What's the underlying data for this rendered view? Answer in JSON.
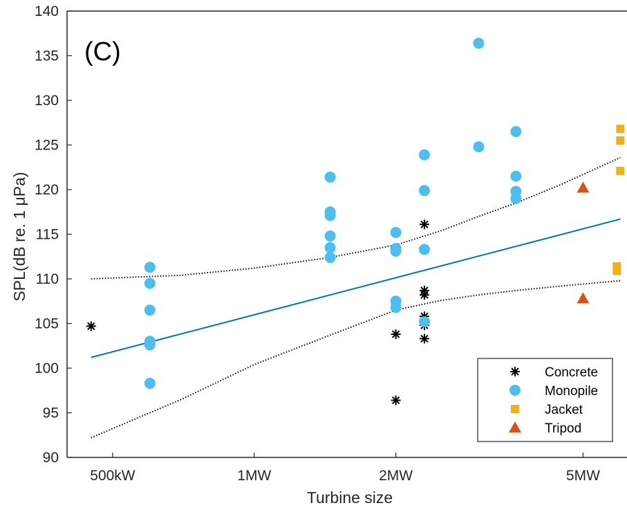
{
  "chart_data": {
    "type": "scatter",
    "panel_label": "(C)",
    "xlabel": "Turbine size",
    "ylabel": "SPL(dB re. 1 μPa)",
    "xscale": "log",
    "xlim_kw": [
      400,
      6200
    ],
    "ylim": [
      90,
      140
    ],
    "xticks": [
      {
        "value_kw": 500,
        "label": "500kW"
      },
      {
        "value_kw": 1000,
        "label": "1MW"
      },
      {
        "value_kw": 2000,
        "label": "2MW"
      },
      {
        "value_kw": 5000,
        "label": "5MW"
      }
    ],
    "yticks": [
      90,
      95,
      100,
      105,
      110,
      115,
      120,
      125,
      130,
      135,
      140
    ],
    "legend": {
      "placement": "bottom-right"
    },
    "colors": {
      "concrete": "#000000",
      "monopile": "#4dbeee",
      "jacket": "#edb120",
      "tripod": "#d95319",
      "fit": "#0072bd",
      "ci": "#000000"
    },
    "series": [
      {
        "name": "Concrete",
        "marker": "asterisk",
        "color": "#000000",
        "points": [
          [
            450,
            104.7
          ],
          [
            2000,
            103.8
          ],
          [
            2000,
            96.4
          ],
          [
            2300,
            116.1
          ],
          [
            2300,
            108.7
          ],
          [
            2300,
            108.2
          ],
          [
            2300,
            105.8
          ],
          [
            2300,
            104.8
          ],
          [
            2300,
            103.3
          ]
        ]
      },
      {
        "name": "Monopile",
        "marker": "circle",
        "color": "#4dbeee",
        "points": [
          [
            600,
            111.3
          ],
          [
            600,
            109.5
          ],
          [
            600,
            106.5
          ],
          [
            600,
            103.0
          ],
          [
            600,
            102.6
          ],
          [
            600,
            98.3
          ],
          [
            1450,
            121.4
          ],
          [
            1450,
            117.5
          ],
          [
            1450,
            117.1
          ],
          [
            1450,
            114.8
          ],
          [
            1450,
            113.5
          ],
          [
            1450,
            112.4
          ],
          [
            2000,
            115.2
          ],
          [
            2000,
            113.4
          ],
          [
            2000,
            113.1
          ],
          [
            2000,
            107.5
          ],
          [
            2000,
            106.8
          ],
          [
            2300,
            123.9
          ],
          [
            2300,
            119.9
          ],
          [
            2300,
            113.3
          ],
          [
            2300,
            105.2
          ],
          [
            3000,
            136.4
          ],
          [
            3000,
            124.8
          ],
          [
            3600,
            126.5
          ],
          [
            3600,
            121.5
          ],
          [
            3600,
            119.8
          ],
          [
            3600,
            119.0
          ]
        ]
      },
      {
        "name": "Jacket",
        "marker": "square",
        "color": "#edb120",
        "points": [
          [
            6000,
            126.8
          ],
          [
            6000,
            125.5
          ],
          [
            6000,
            122.1
          ],
          [
            5900,
            111.4
          ],
          [
            5900,
            110.9
          ]
        ]
      },
      {
        "name": "Tripod",
        "marker": "triangle",
        "color": "#d95319",
        "points": [
          [
            5000,
            120.2
          ],
          [
            5000,
            107.8
          ]
        ]
      }
    ],
    "fit_line": {
      "color": "#0072bd",
      "points": [
        [
          450,
          101.2
        ],
        [
          6000,
          116.7
        ]
      ]
    },
    "ci_upper": {
      "color": "#000000",
      "style": "dotted",
      "points": [
        [
          450,
          110.0
        ],
        [
          700,
          110.4
        ],
        [
          1000,
          111.2
        ],
        [
          1450,
          112.4
        ],
        [
          2000,
          113.8
        ],
        [
          2500,
          115.4
        ],
        [
          3000,
          117.0
        ],
        [
          3600,
          118.5
        ],
        [
          4500,
          120.6
        ],
        [
          6000,
          123.6
        ]
      ]
    },
    "ci_lower": {
      "color": "#000000",
      "style": "dotted",
      "points": [
        [
          450,
          92.2
        ],
        [
          700,
          96.5
        ],
        [
          1000,
          100.4
        ],
        [
          1450,
          103.7
        ],
        [
          2000,
          106.5
        ],
        [
          2500,
          107.6
        ],
        [
          3000,
          108.2
        ],
        [
          3600,
          108.7
        ],
        [
          4500,
          109.2
        ],
        [
          6000,
          109.8
        ]
      ]
    }
  }
}
